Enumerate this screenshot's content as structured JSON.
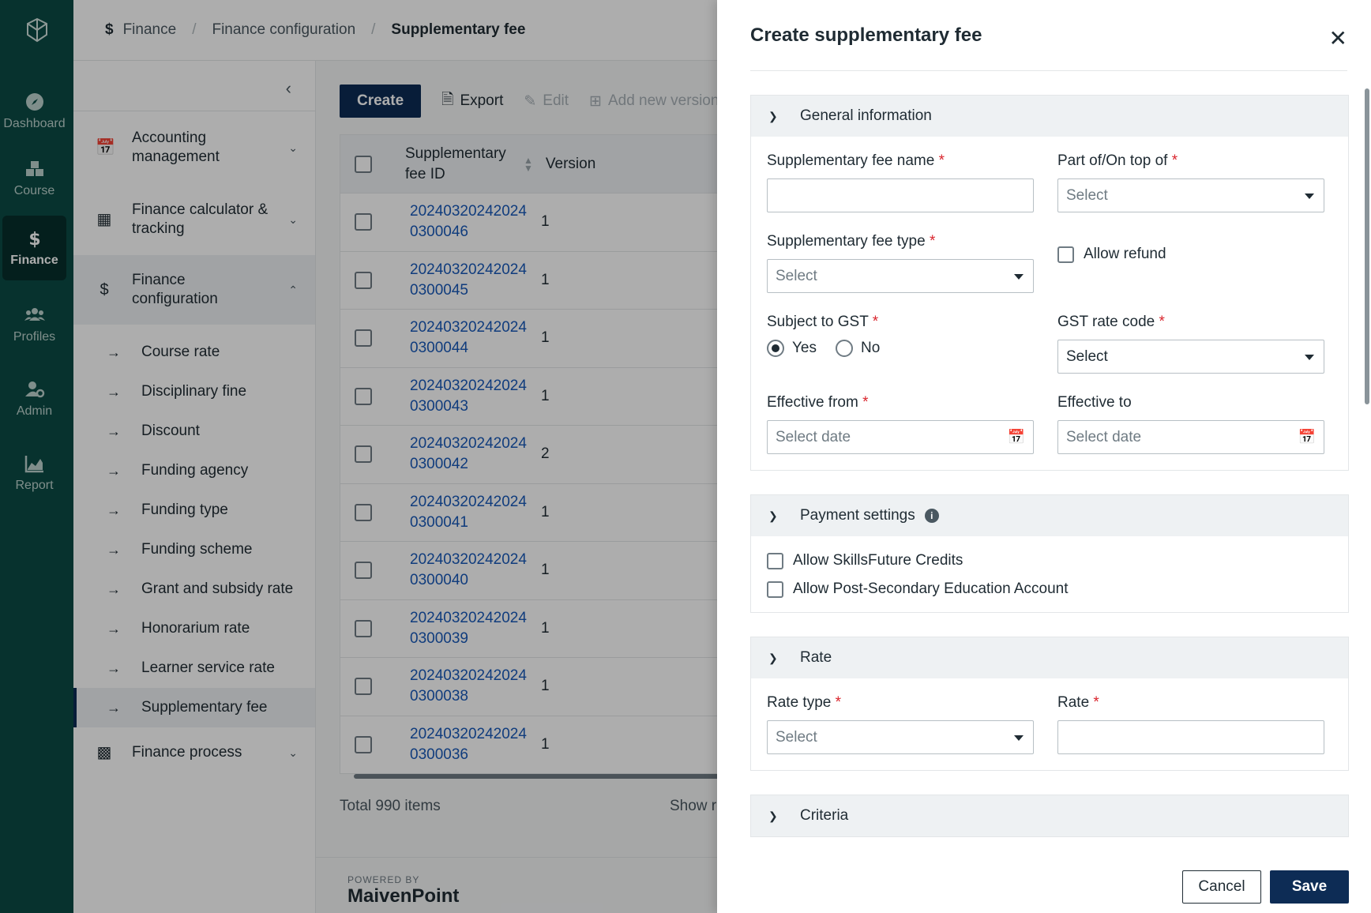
{
  "rail": {
    "items": [
      {
        "label": "Dashboard",
        "icon": "compass-icon"
      },
      {
        "label": "Course",
        "icon": "cubes-icon"
      },
      {
        "label": "Finance",
        "icon": "dollar-icon",
        "active": true
      },
      {
        "label": "Profiles",
        "icon": "people-icon"
      },
      {
        "label": "Admin",
        "icon": "user-gear-icon"
      },
      {
        "label": "Report",
        "icon": "chart-icon"
      }
    ]
  },
  "breadcrumb": [
    "Finance",
    "Finance configuration",
    "Supplementary fee"
  ],
  "subnav": {
    "groups": [
      {
        "label": "Accounting management",
        "icon": "calendar-icon"
      },
      {
        "label": "Finance calculator & tracking",
        "icon": "calculator-icon"
      },
      {
        "label": "Finance configuration",
        "icon": "dollar-icon"
      }
    ],
    "children": [
      "Course rate",
      "Disciplinary fine",
      "Discount",
      "Funding agency",
      "Funding type",
      "Funding scheme",
      "Grant and subsidy rate",
      "Honorarium rate",
      "Learner service rate",
      "Supplementary fee"
    ],
    "last_group": "Finance process"
  },
  "toolbar": {
    "create": "Create",
    "export": "Export",
    "edit": "Edit",
    "add_version": "Add new version"
  },
  "grid": {
    "col_id": "Supplementary fee ID",
    "col_version": "Version",
    "rows": [
      {
        "id": "202403202420240300046",
        "version": "1"
      },
      {
        "id": "202403202420240300045",
        "version": "1"
      },
      {
        "id": "202403202420240300044",
        "version": "1"
      },
      {
        "id": "202403202420240300043",
        "version": "1"
      },
      {
        "id": "202403202420240300042",
        "version": "2"
      },
      {
        "id": "202403202420240300041",
        "version": "1"
      },
      {
        "id": "202403202420240300040",
        "version": "1"
      },
      {
        "id": "202403202420240300039",
        "version": "1"
      },
      {
        "id": "202403202420240300038",
        "version": "1"
      },
      {
        "id": "202403202420240300036",
        "version": "1"
      }
    ],
    "total": "Total 990 items",
    "show_rows": "Show ro"
  },
  "footer": {
    "powered": "POWERED BY",
    "brand": "MaivenPoint"
  },
  "drawer": {
    "title": "Create supplementary fee",
    "general": {
      "title": "General information",
      "name_label": "Supplementary fee name",
      "part_of_label": "Part of/On top of",
      "part_of_placeholder": "Select",
      "type_label": "Supplementary fee type",
      "type_placeholder": "Select",
      "allow_refund": "Allow refund",
      "gst_label": "Subject to GST",
      "gst_yes": "Yes",
      "gst_no": "No",
      "gst_rate_label": "GST rate code",
      "gst_rate_placeholder": "Select",
      "eff_from_label": "Effective from",
      "eff_from_placeholder": "Select date",
      "eff_to_label": "Effective to",
      "eff_to_placeholder": "Select date"
    },
    "payment": {
      "title": "Payment settings",
      "skills": "Allow SkillsFuture Credits",
      "psea": "Allow Post-Secondary Education Account"
    },
    "rate": {
      "title": "Rate",
      "type_label": "Rate type",
      "type_placeholder": "Select",
      "rate_label": "Rate"
    },
    "criteria": {
      "title": "Criteria"
    },
    "cancel": "Cancel",
    "save": "Save"
  }
}
